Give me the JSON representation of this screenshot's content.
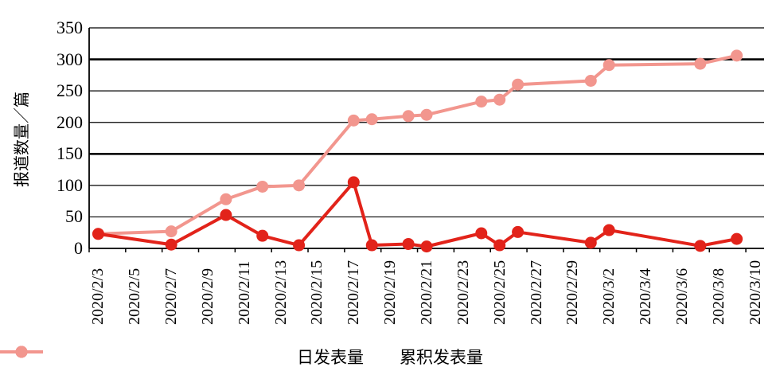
{
  "chart_data": {
    "type": "line",
    "title": "",
    "xlabel": "",
    "ylabel": "报道数量／篇",
    "ylim": [
      0,
      350
    ],
    "yticks": [
      0,
      50,
      100,
      150,
      200,
      250,
      300,
      350
    ],
    "thick_gridlines": [
      150,
      300
    ],
    "grid": "horizontal",
    "legend_position": "bottom-center",
    "x_total_days": 37,
    "x_tick_labels": [
      "2020/2/3",
      "2020/2/5",
      "2020/2/7",
      "2020/2/9",
      "2020/2/11",
      "2020/2/13",
      "2020/2/15",
      "2020/2/17",
      "2020/2/19",
      "2020/2/21",
      "2020/2/23",
      "2020/2/25",
      "2020/2/27",
      "2020/2/29",
      "2020/3/2",
      "2020/3/4",
      "2020/3/6",
      "2020/3/8",
      "2020/3/10"
    ],
    "series": [
      {
        "name": "日发表量",
        "color": "#e2231a",
        "marker": "circle",
        "dates": [
          "2020/2/3",
          "2020/2/7",
          "2020/2/10",
          "2020/2/12",
          "2020/2/14",
          "2020/2/17",
          "2020/2/18",
          "2020/2/20",
          "2020/2/21",
          "2020/2/24",
          "2020/2/25",
          "2020/2/26",
          "2020/3/1",
          "2020/3/2",
          "2020/3/7",
          "2020/3/9"
        ],
        "day_offsets": [
          0,
          4,
          7,
          9,
          11,
          14,
          15,
          17,
          18,
          21,
          22,
          23,
          27,
          28,
          33,
          35
        ],
        "values": [
          23,
          6,
          53,
          20,
          5,
          105,
          5,
          7,
          3,
          24,
          5,
          26,
          9,
          29,
          4,
          15
        ]
      },
      {
        "name": "累积发表量",
        "color": "#f2968e",
        "marker": "circle",
        "dates": [
          "2020/2/3",
          "2020/2/7",
          "2020/2/10",
          "2020/2/12",
          "2020/2/14",
          "2020/2/17",
          "2020/2/18",
          "2020/2/20",
          "2020/2/21",
          "2020/2/24",
          "2020/2/25",
          "2020/2/26",
          "2020/3/1",
          "2020/3/2",
          "2020/3/7",
          "2020/3/9"
        ],
        "day_offsets": [
          0,
          4,
          7,
          9,
          11,
          14,
          15,
          17,
          18,
          21,
          22,
          23,
          27,
          28,
          33,
          35
        ],
        "values": [
          23,
          27,
          78,
          98,
          100,
          203,
          205,
          210,
          212,
          233,
          236,
          260,
          266,
          291,
          293,
          306
        ]
      }
    ]
  }
}
